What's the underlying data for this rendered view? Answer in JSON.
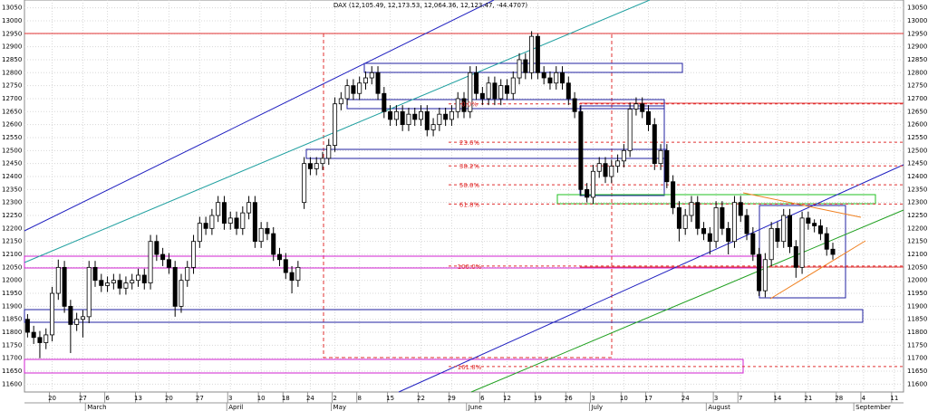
{
  "chart_data": {
    "type": "candlestick",
    "title": "DAX (12,105.49, 12,173.53, 12,064.36, 12,123.47, -44.4707)",
    "open": [
      11850,
      11800,
      11780,
      11760,
      11790,
      11950,
      12050,
      11900,
      11830,
      11850,
      11860,
      12050,
      12000,
      11980,
      11990,
      12000,
      11970,
      11990,
      12000,
      12020,
      11990,
      12150,
      12100,
      12080,
      12050,
      11900,
      12000,
      12050,
      12150,
      12220,
      12200,
      12250,
      12300,
      12220,
      12240,
      12200,
      12260,
      12300,
      12150,
      12200,
      12180,
      12100,
      12080,
      12030,
      12000,
      12300,
      12450,
      12430,
      12450,
      12470,
      12520,
      12680,
      12700,
      12750,
      12720,
      12760,
      12780,
      12800,
      12720,
      12650,
      12620,
      12650,
      12600,
      12640,
      12620,
      12650,
      12580,
      12600,
      12640,
      12620,
      12650,
      12700,
      12650,
      12800,
      12720,
      12700,
      12760,
      12700,
      12750,
      12720,
      12780,
      12850,
      12800,
      12940,
      12800,
      12780,
      12760,
      12800,
      12760,
      12700,
      12650,
      12350,
      12320,
      12420,
      12450,
      12400,
      12440,
      12460,
      12500,
      12660,
      12680,
      12650,
      12600,
      12450,
      12500,
      12380,
      12280,
      12200,
      12250,
      12300,
      12200,
      12180,
      12150,
      12280,
      12200,
      12150,
      12300,
      12250,
      12180,
      12100,
      11960,
      12080,
      12200,
      12150,
      12250,
      12130,
      12050,
      12240,
      12220,
      12210,
      12180,
      12120
    ],
    "high": [
      11870,
      11825,
      11805,
      11815,
      11975,
      12080,
      12075,
      11925,
      11875,
      11885,
      12075,
      12075,
      12025,
      12015,
      12025,
      12025,
      12015,
      12025,
      12045,
      12045,
      12175,
      12175,
      12125,
      12105,
      12075,
      12025,
      12075,
      12175,
      12245,
      12245,
      12275,
      12325,
      12325,
      12265,
      12265,
      12285,
      12325,
      12325,
      12225,
      12225,
      12205,
      12125,
      12105,
      12055,
      12075,
      12475,
      12475,
      12475,
      12495,
      12545,
      12705,
      12725,
      12775,
      12775,
      12785,
      12805,
      12825,
      12825,
      12745,
      12675,
      12675,
      12675,
      12665,
      12665,
      12675,
      12675,
      12625,
      12665,
      12665,
      12675,
      12725,
      12725,
      12825,
      12825,
      12745,
      12785,
      12785,
      12775,
      12775,
      12805,
      12875,
      12875,
      12960,
      12950,
      12825,
      12805,
      12825,
      12825,
      12785,
      12725,
      12675,
      12375,
      12445,
      12475,
      12475,
      12465,
      12485,
      12525,
      12685,
      12705,
      12705,
      12675,
      12625,
      12525,
      12525,
      12405,
      12305,
      12275,
      12325,
      12325,
      12225,
      12205,
      12305,
      12305,
      12225,
      12325,
      12325,
      12275,
      12205,
      12125,
      12105,
      12225,
      12225,
      12275,
      12275,
      12155,
      12265,
      12265,
      12235,
      12235,
      12205,
      12145
    ],
    "low": [
      11780,
      11755,
      11700,
      11735,
      11765,
      11925,
      11875,
      11720,
      11805,
      11780,
      11835,
      11975,
      11955,
      11955,
      11965,
      11945,
      11945,
      11965,
      11975,
      11965,
      11965,
      12075,
      12055,
      12025,
      11860,
      11875,
      11975,
      12025,
      12125,
      12175,
      12175,
      12225,
      12195,
      12195,
      12175,
      12175,
      12235,
      12125,
      12125,
      12155,
      12075,
      12055,
      12005,
      11950,
      11975,
      12275,
      12405,
      12405,
      12425,
      12445,
      12495,
      12655,
      12675,
      12695,
      12695,
      12735,
      12755,
      12695,
      12625,
      12595,
      12595,
      12575,
      12575,
      12595,
      12595,
      12555,
      12555,
      12575,
      12595,
      12595,
      12625,
      12625,
      12625,
      12695,
      12675,
      12675,
      12675,
      12675,
      12695,
      12695,
      12755,
      12775,
      12775,
      12775,
      12755,
      12735,
      12735,
      12735,
      12675,
      12625,
      12325,
      12300,
      12295,
      12395,
      12375,
      12375,
      12415,
      12435,
      12475,
      12635,
      12625,
      12575,
      12425,
      12425,
      12355,
      12255,
      12150,
      12175,
      12225,
      12175,
      12155,
      12100,
      12125,
      12175,
      12100,
      12125,
      12225,
      12155,
      12075,
      11940,
      11935,
      12055,
      12125,
      12125,
      12105,
      12010,
      12025,
      12195,
      12185,
      12155,
      12095,
      12080
    ],
    "close": [
      11800,
      11780,
      11760,
      11790,
      11950,
      12050,
      11900,
      11830,
      11850,
      11860,
      12050,
      12000,
      11980,
      11990,
      12000,
      11970,
      11990,
      12000,
      12020,
      11990,
      12150,
      12100,
      12080,
      12050,
      11900,
      12000,
      12050,
      12150,
      12220,
      12200,
      12250,
      12300,
      12220,
      12240,
      12200,
      12260,
      12300,
      12150,
      12200,
      12180,
      12100,
      12080,
      12030,
      12000,
      12050,
      12450,
      12430,
      12450,
      12470,
      12520,
      12680,
      12700,
      12750,
      12720,
      12760,
      12780,
      12800,
      12720,
      12650,
      12620,
      12650,
      12600,
      12640,
      12620,
      12650,
      12580,
      12600,
      12640,
      12620,
      12650,
      12700,
      12650,
      12800,
      12720,
      12700,
      12760,
      12700,
      12750,
      12720,
      12780,
      12850,
      12800,
      12940,
      12800,
      12780,
      12760,
      12800,
      12760,
      12700,
      12650,
      12350,
      12320,
      12420,
      12450,
      12400,
      12440,
      12460,
      12500,
      12660,
      12680,
      12650,
      12600,
      12450,
      12500,
      12380,
      12280,
      12200,
      12250,
      12300,
      12200,
      12180,
      12150,
      12280,
      12200,
      12150,
      12300,
      12250,
      12180,
      12100,
      11960,
      12080,
      12200,
      12150,
      12250,
      12130,
      12050,
      12240,
      12220,
      12210,
      12180,
      12120,
      12100
    ],
    "xlim": [
      -0.5,
      142.5
    ],
    "xticks": [
      {
        "value": 4,
        "label": "20"
      },
      {
        "value": 9,
        "label": "27"
      },
      {
        "value": 13,
        "label": "6"
      },
      {
        "value": 18,
        "label": "13"
      },
      {
        "value": 23,
        "label": "20"
      },
      {
        "value": 28,
        "label": "27"
      },
      {
        "value": 33,
        "label": "3"
      },
      {
        "value": 38,
        "label": "10"
      },
      {
        "value": 42,
        "label": "18"
      },
      {
        "value": 46,
        "label": "24"
      },
      {
        "value": 50,
        "label": "2"
      },
      {
        "value": 54,
        "label": "8"
      },
      {
        "value": 59,
        "label": "15"
      },
      {
        "value": 64,
        "label": "22"
      },
      {
        "value": 69,
        "label": "29"
      },
      {
        "value": 74,
        "label": "6"
      },
      {
        "value": 78,
        "label": "12"
      },
      {
        "value": 83,
        "label": "19"
      },
      {
        "value": 88,
        "label": "26"
      },
      {
        "value": 92,
        "label": "3"
      },
      {
        "value": 97,
        "label": "10"
      },
      {
        "value": 101,
        "label": "17"
      },
      {
        "value": 107,
        "label": "24"
      },
      {
        "value": 112,
        "label": "3"
      },
      {
        "value": 116,
        "label": "7"
      },
      {
        "value": 122,
        "label": "14"
      },
      {
        "value": 127,
        "label": "21"
      },
      {
        "value": 132,
        "label": "28"
      },
      {
        "value": 136,
        "label": "4"
      },
      {
        "value": 141,
        "label": "11"
      }
    ],
    "month_ticks": [
      {
        "value": 10,
        "label": "March"
      },
      {
        "value": 33,
        "label": "April"
      },
      {
        "value": 50,
        "label": "May"
      },
      {
        "value": 72,
        "label": "June"
      },
      {
        "value": 92,
        "label": "July"
      },
      {
        "value": 111,
        "label": "August"
      },
      {
        "value": 135,
        "label": "September"
      }
    ],
    "ylim": [
      11570,
      13080
    ],
    "yticks": [
      11600,
      11650,
      11700,
      11750,
      11800,
      11850,
      11900,
      11950,
      12000,
      12050,
      12100,
      12150,
      12200,
      12250,
      12300,
      12350,
      12400,
      12450,
      12500,
      12550,
      12600,
      12650,
      12700,
      12750,
      12800,
      12850,
      12900,
      12950,
      13000,
      13050
    ],
    "fib_levels": [
      {
        "value": 12680,
        "label": "0.0%"
      },
      {
        "value": 12532,
        "label": "23.6%"
      },
      {
        "value": 12441,
        "label": "38.2%"
      },
      {
        "value": 12368,
        "label": "50.0%"
      },
      {
        "value": 12294,
        "label": "61.8%"
      },
      {
        "value": 12055,
        "label": "100.0%"
      },
      {
        "value": 11668,
        "label": "161.8%"
      }
    ],
    "grid": true,
    "up_color": "#ffffff",
    "down_color": "#000000"
  }
}
